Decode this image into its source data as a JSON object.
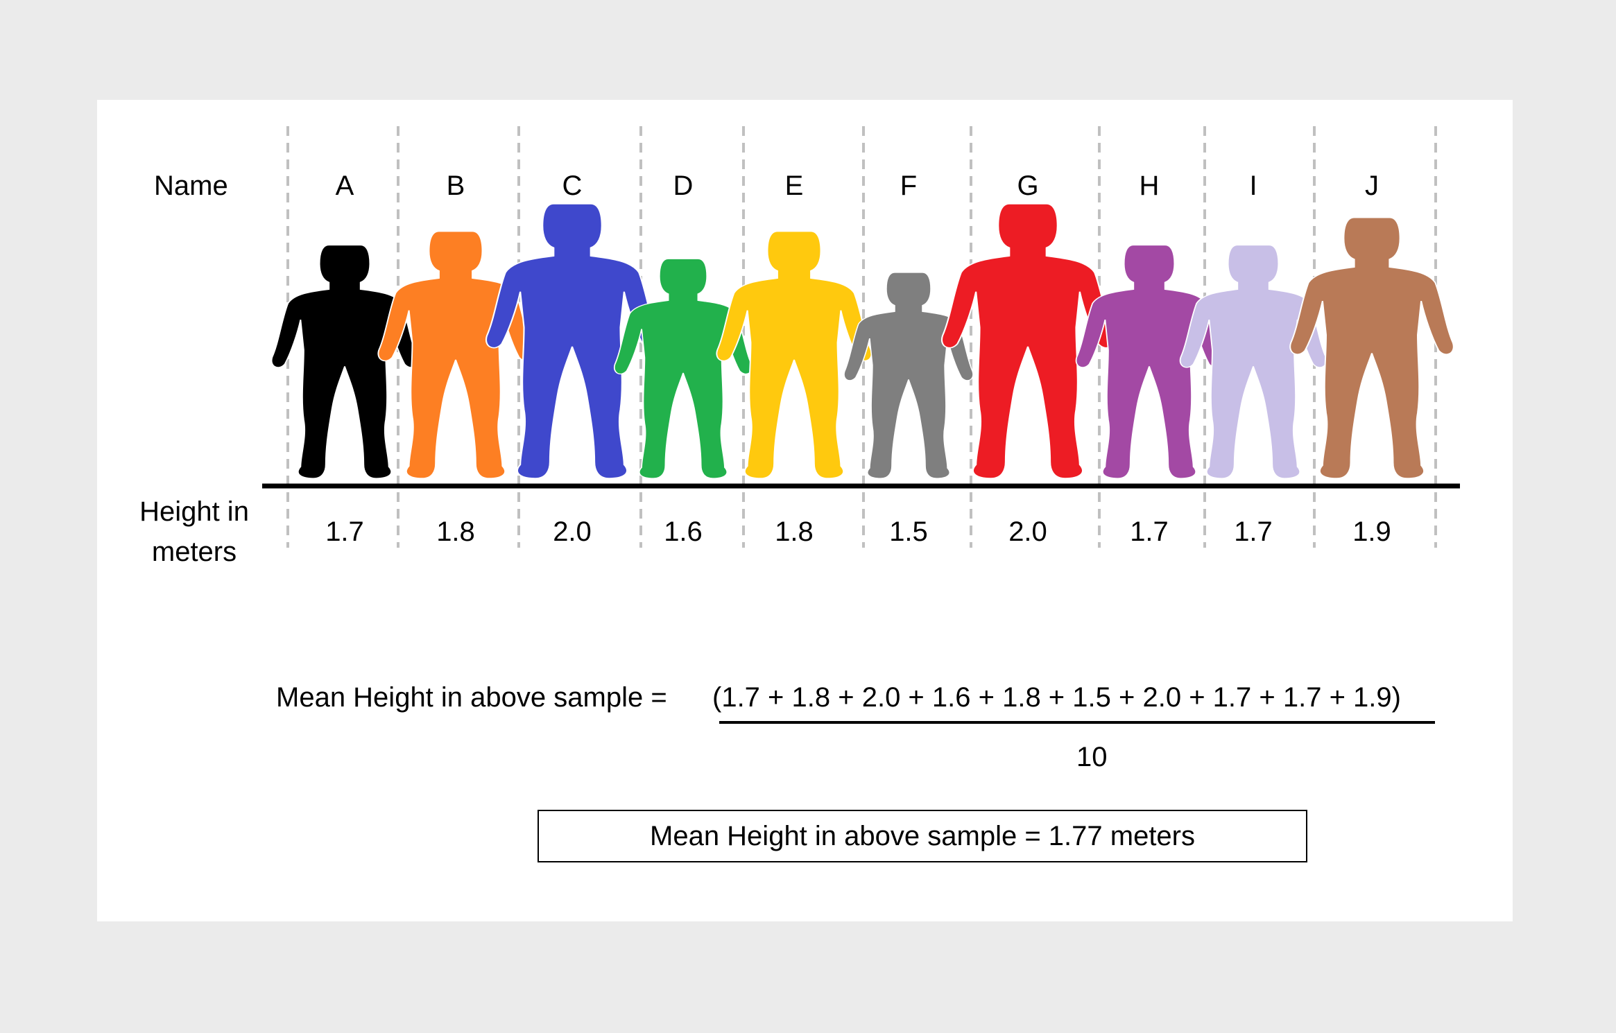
{
  "labels": {
    "name_row": "Name",
    "height_row_line1": "Height in",
    "height_row_line2": "meters"
  },
  "people": [
    {
      "name": "A",
      "height": "1.7",
      "color": "#000000"
    },
    {
      "name": "B",
      "height": "1.8",
      "color": "#fd7f23"
    },
    {
      "name": "C",
      "height": "2.0",
      "color": "#3f48cc"
    },
    {
      "name": "D",
      "height": "1.6",
      "color": "#22b14c"
    },
    {
      "name": "E",
      "height": "1.8",
      "color": "#ffc90e"
    },
    {
      "name": "F",
      "height": "1.5",
      "color": "#7f7f7f"
    },
    {
      "name": "G",
      "height": "2.0",
      "color": "#ed1c24"
    },
    {
      "name": "H",
      "height": "1.7",
      "color": "#a349a4"
    },
    {
      "name": "I",
      "height": "1.7",
      "color": "#c8bfe7"
    },
    {
      "name": "J",
      "height": "1.9",
      "color": "#b97a57"
    }
  ],
  "formula": {
    "lhs": "Mean Height in above sample = ",
    "numerator": "(1.7 + 1.8 + 2.0 + 1.6 + 1.8 + 1.5 + 2.0 + 1.7 + 1.7 + 1.9)",
    "denominator": "10"
  },
  "result": "Mean Height in above sample = 1.77 meters"
}
